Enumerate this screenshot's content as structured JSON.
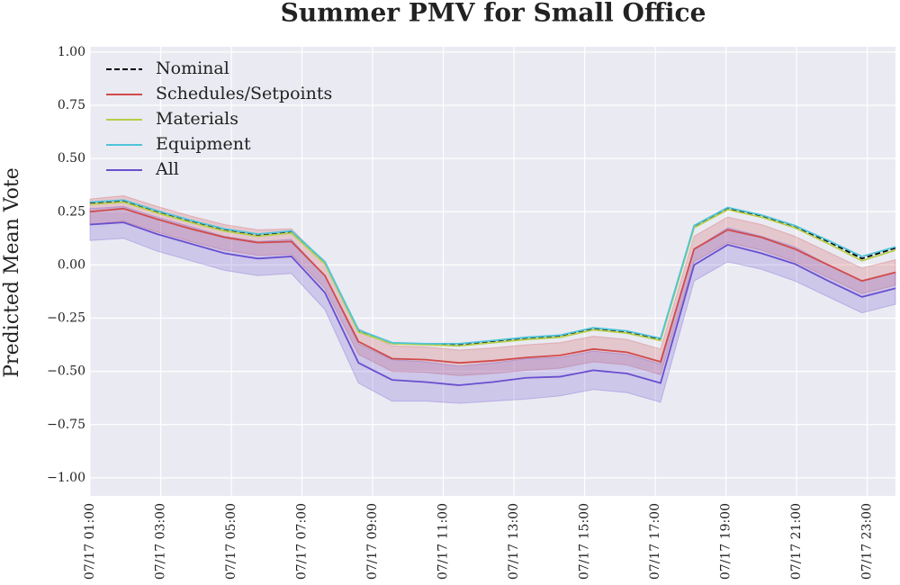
{
  "chart_data": {
    "type": "line",
    "title": "Summer PMV for Small Office",
    "ylabel": "Predicted Mean Vote",
    "x": [
      1,
      1.95,
      2.9,
      3.85,
      4.8,
      5.75,
      6.7,
      7.65,
      8.6,
      9.55,
      10.5,
      11.45,
      12.4,
      13.35,
      14.3,
      15.25,
      16.2,
      17.15,
      18.1,
      19.05,
      20,
      20.95,
      21.9,
      22.85,
      23.8
    ],
    "xlim": [
      1,
      23.8
    ],
    "xticks": [
      {
        "value": 1,
        "label": "07/17  01:00"
      },
      {
        "value": 3,
        "label": "07/17  03:00"
      },
      {
        "value": 5,
        "label": "07/17  05:00"
      },
      {
        "value": 7,
        "label": "07/17  07:00"
      },
      {
        "value": 9,
        "label": "07/17  09:00"
      },
      {
        "value": 11,
        "label": "07/17  11:00"
      },
      {
        "value": 13,
        "label": "07/17  13:00"
      },
      {
        "value": 15,
        "label": "07/17  15:00"
      },
      {
        "value": 17,
        "label": "07/17  17:00"
      },
      {
        "value": 19,
        "label": "07/17  19:00"
      },
      {
        "value": 21,
        "label": "07/17  21:00"
      },
      {
        "value": 23,
        "label": "07/17  23:00"
      }
    ],
    "ylim": [
      -1.085,
      1.025
    ],
    "yticks": [
      {
        "value": -1,
        "label": "−1.00"
      },
      {
        "value": -0.75,
        "label": "−0.75"
      },
      {
        "value": -0.5,
        "label": "−0.50"
      },
      {
        "value": -0.25,
        "label": "−0.25"
      },
      {
        "value": 0,
        "label": "0.00"
      },
      {
        "value": 0.25,
        "label": "0.25"
      },
      {
        "value": 0.5,
        "label": "0.50"
      },
      {
        "value": 0.75,
        "label": "0.75"
      },
      {
        "value": 1,
        "label": "1.00"
      }
    ],
    "grid": true,
    "legend": "upper left",
    "series": [
      {
        "name": "Nominal",
        "color": "#000000",
        "linestyle": "dashed",
        "values": [
          0.29,
          0.3,
          0.25,
          0.205,
          0.165,
          0.14,
          0.155,
          0.01,
          -0.31,
          -0.37,
          -0.37,
          -0.375,
          -0.36,
          -0.345,
          -0.335,
          -0.3,
          -0.315,
          -0.35,
          0.18,
          0.265,
          0.23,
          0.18,
          0.11,
          0.03,
          0.08
        ]
      },
      {
        "name": "Schedules/Setpoints",
        "color": "#d04b4b",
        "linestyle": "solid",
        "values": [
          0.25,
          0.265,
          0.215,
          0.17,
          0.13,
          0.105,
          0.11,
          -0.05,
          -0.36,
          -0.44,
          -0.445,
          -0.46,
          -0.45,
          -0.435,
          -0.425,
          -0.395,
          -0.41,
          -0.455,
          0.075,
          0.165,
          0.13,
          0.075,
          0.0,
          -0.075,
          -0.035
        ],
        "lower": [
          0.19,
          0.205,
          0.155,
          0.11,
          0.07,
          0.045,
          0.05,
          -0.11,
          -0.42,
          -0.5,
          -0.505,
          -0.52,
          -0.51,
          -0.495,
          -0.485,
          -0.455,
          -0.47,
          -0.515,
          0.015,
          0.105,
          0.07,
          0.015,
          -0.06,
          -0.135,
          -0.095
        ],
        "upper": [
          0.31,
          0.325,
          0.275,
          0.23,
          0.19,
          0.165,
          0.17,
          0.01,
          -0.3,
          -0.38,
          -0.385,
          -0.4,
          -0.39,
          -0.375,
          -0.365,
          -0.335,
          -0.35,
          -0.395,
          0.135,
          0.225,
          0.19,
          0.135,
          0.06,
          -0.015,
          0.025
        ]
      },
      {
        "name": "Materials",
        "color": "#b5cf4a",
        "linestyle": "solid",
        "values": [
          0.285,
          0.295,
          0.245,
          0.2,
          0.16,
          0.135,
          0.15,
          0.005,
          -0.315,
          -0.37,
          -0.375,
          -0.38,
          -0.365,
          -0.35,
          -0.34,
          -0.305,
          -0.32,
          -0.355,
          0.175,
          0.26,
          0.225,
          0.175,
          0.1,
          0.02,
          0.07
        ]
      },
      {
        "name": "Equipment",
        "color": "#4fc4d9",
        "linestyle": "solid",
        "values": [
          0.295,
          0.305,
          0.255,
          0.21,
          0.17,
          0.145,
          0.16,
          0.015,
          -0.305,
          -0.365,
          -0.37,
          -0.37,
          -0.355,
          -0.34,
          -0.33,
          -0.295,
          -0.31,
          -0.345,
          0.185,
          0.27,
          0.235,
          0.185,
          0.115,
          0.04,
          0.085
        ]
      },
      {
        "name": "All",
        "color": "#6a4fcf",
        "linestyle": "solid",
        "values": [
          0.19,
          0.2,
          0.145,
          0.1,
          0.055,
          0.03,
          0.04,
          -0.13,
          -0.46,
          -0.54,
          -0.55,
          -0.565,
          -0.55,
          -0.53,
          -0.525,
          -0.495,
          -0.51,
          -0.555,
          0.0,
          0.095,
          0.055,
          0.005,
          -0.075,
          -0.15,
          -0.11
        ],
        "lower": [
          0.115,
          0.125,
          0.065,
          0.02,
          -0.025,
          -0.05,
          -0.04,
          -0.21,
          -0.555,
          -0.64,
          -0.64,
          -0.65,
          -0.64,
          -0.63,
          -0.615,
          -0.585,
          -0.6,
          -0.645,
          -0.075,
          0.015,
          -0.02,
          -0.075,
          -0.15,
          -0.225,
          -0.185
        ],
        "upper": [
          0.265,
          0.275,
          0.225,
          0.18,
          0.135,
          0.11,
          0.12,
          -0.05,
          -0.37,
          -0.445,
          -0.455,
          -0.475,
          -0.46,
          -0.44,
          -0.435,
          -0.405,
          -0.42,
          -0.465,
          0.075,
          0.175,
          0.135,
          0.085,
          0.0,
          -0.075,
          -0.035
        ]
      }
    ]
  }
}
